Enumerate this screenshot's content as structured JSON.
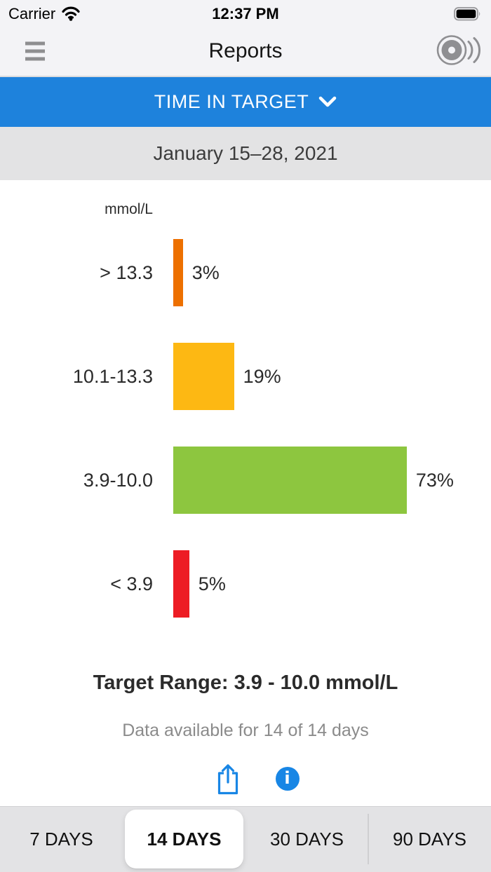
{
  "status_bar": {
    "carrier": "Carrier",
    "time": "12:37 PM",
    "battery_level": "full"
  },
  "header": {
    "title": "Reports"
  },
  "report_selector": {
    "label": "TIME IN TARGET"
  },
  "date_bar": {
    "label": "January 15–28, 2021"
  },
  "chart_data": {
    "type": "bar",
    "orientation": "horizontal",
    "title": "TIME IN TARGET",
    "unit_label": "mmol/L",
    "categories": [
      "> 13.3",
      "10.1-13.3",
      "3.9-10.0",
      "< 3.9"
    ],
    "values": [
      3,
      19,
      73,
      5
    ],
    "value_labels": [
      "3%",
      "19%",
      "73%",
      "5%"
    ],
    "colors": [
      "#ED7000",
      "#FDB813",
      "#8DC63F",
      "#ED1C24"
    ],
    "xlim": [
      0,
      100
    ],
    "grid": false,
    "legend": false
  },
  "summary": {
    "target_range": "Target Range: 3.9 - 10.0 mmol/L",
    "data_available": "Data available for 14 of 14 days"
  },
  "icons": {
    "status_bar": [
      "wifi-icon",
      "battery-icon"
    ],
    "header": [
      "menu-icon",
      "sensor-signal-icon"
    ],
    "selector": [
      "chevron-down-icon"
    ],
    "actions": [
      "share-icon",
      "info-icon"
    ]
  },
  "colors": {
    "header_blue": "#1E82DC",
    "icon_blue": "#1886E5",
    "chrome_gray": "#F3F3F6",
    "date_bar_gray": "#E3E3E4",
    "segmented_gray": "#E3E3E5"
  },
  "tabs": {
    "items": [
      {
        "label": "7 DAYS",
        "selected": false
      },
      {
        "label": "14 DAYS",
        "selected": true
      },
      {
        "label": "30 DAYS",
        "selected": false
      },
      {
        "label": "90 DAYS",
        "selected": false
      }
    ]
  }
}
